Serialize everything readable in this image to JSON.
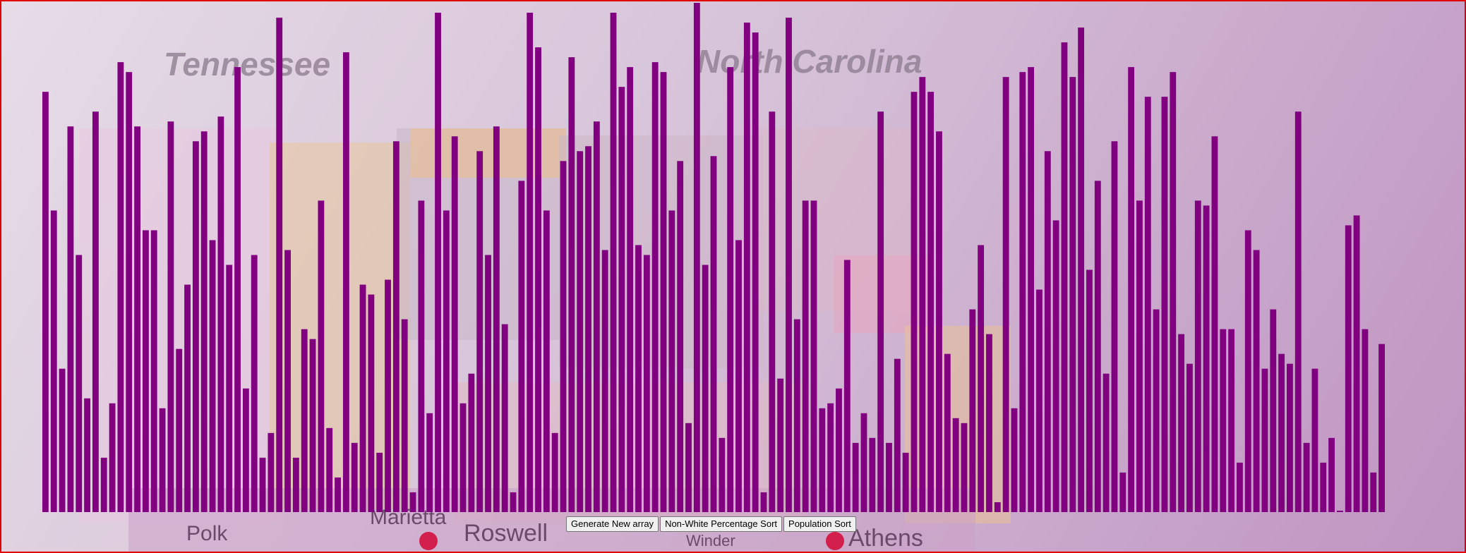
{
  "background_map": {
    "state_labels": [
      "Tennessee",
      "North Carolina"
    ],
    "city_labels": [
      "Marietta",
      "Roswell",
      "Athens",
      "Polk",
      "Winder"
    ]
  },
  "colors": {
    "bar": "#800080",
    "frame": "#e00000"
  },
  "chart_data": {
    "type": "bar",
    "title": "",
    "xlabel": "",
    "ylabel": "",
    "ylim": [
      0,
      100
    ],
    "values": [
      85,
      61,
      29,
      78,
      52,
      23,
      81,
      11,
      22,
      91,
      89,
      78,
      57,
      57,
      21,
      79,
      33,
      46,
      75,
      77,
      55,
      80,
      50,
      90,
      25,
      52,
      11,
      16,
      100,
      53,
      11,
      37,
      35,
      63,
      17,
      7,
      93,
      14,
      46,
      44,
      12,
      47,
      75,
      39,
      4,
      63,
      20,
      101,
      61,
      76,
      22,
      28,
      73,
      52,
      78,
      38,
      4,
      67,
      101,
      94,
      61,
      16,
      71,
      92,
      73,
      74,
      79,
      53,
      101,
      86,
      90,
      54,
      52,
      91,
      89,
      61,
      71,
      18,
      103,
      50,
      72,
      15,
      90,
      55,
      99,
      97,
      4,
      81,
      27,
      100,
      39,
      63,
      63,
      21,
      22,
      25,
      51,
      14,
      20,
      15,
      81,
      14,
      31,
      12,
      85,
      88,
      85,
      77,
      32,
      19,
      18,
      41,
      54,
      36,
      2,
      88,
      21,
      89,
      90,
      45,
      73,
      59,
      95,
      88,
      98,
      49,
      67,
      28,
      75,
      8,
      90,
      63,
      84,
      41,
      84,
      89,
      36,
      30,
      63,
      62,
      76,
      37,
      37,
      10,
      57,
      53,
      29,
      41,
      32,
      30,
      81,
      14,
      29,
      10,
      15,
      0,
      58,
      60,
      37,
      8,
      34
    ]
  },
  "controls": {
    "generate_label": "Generate New array",
    "nonwhite_label": "Non-White Percentage Sort",
    "population_label": "Population Sort"
  }
}
